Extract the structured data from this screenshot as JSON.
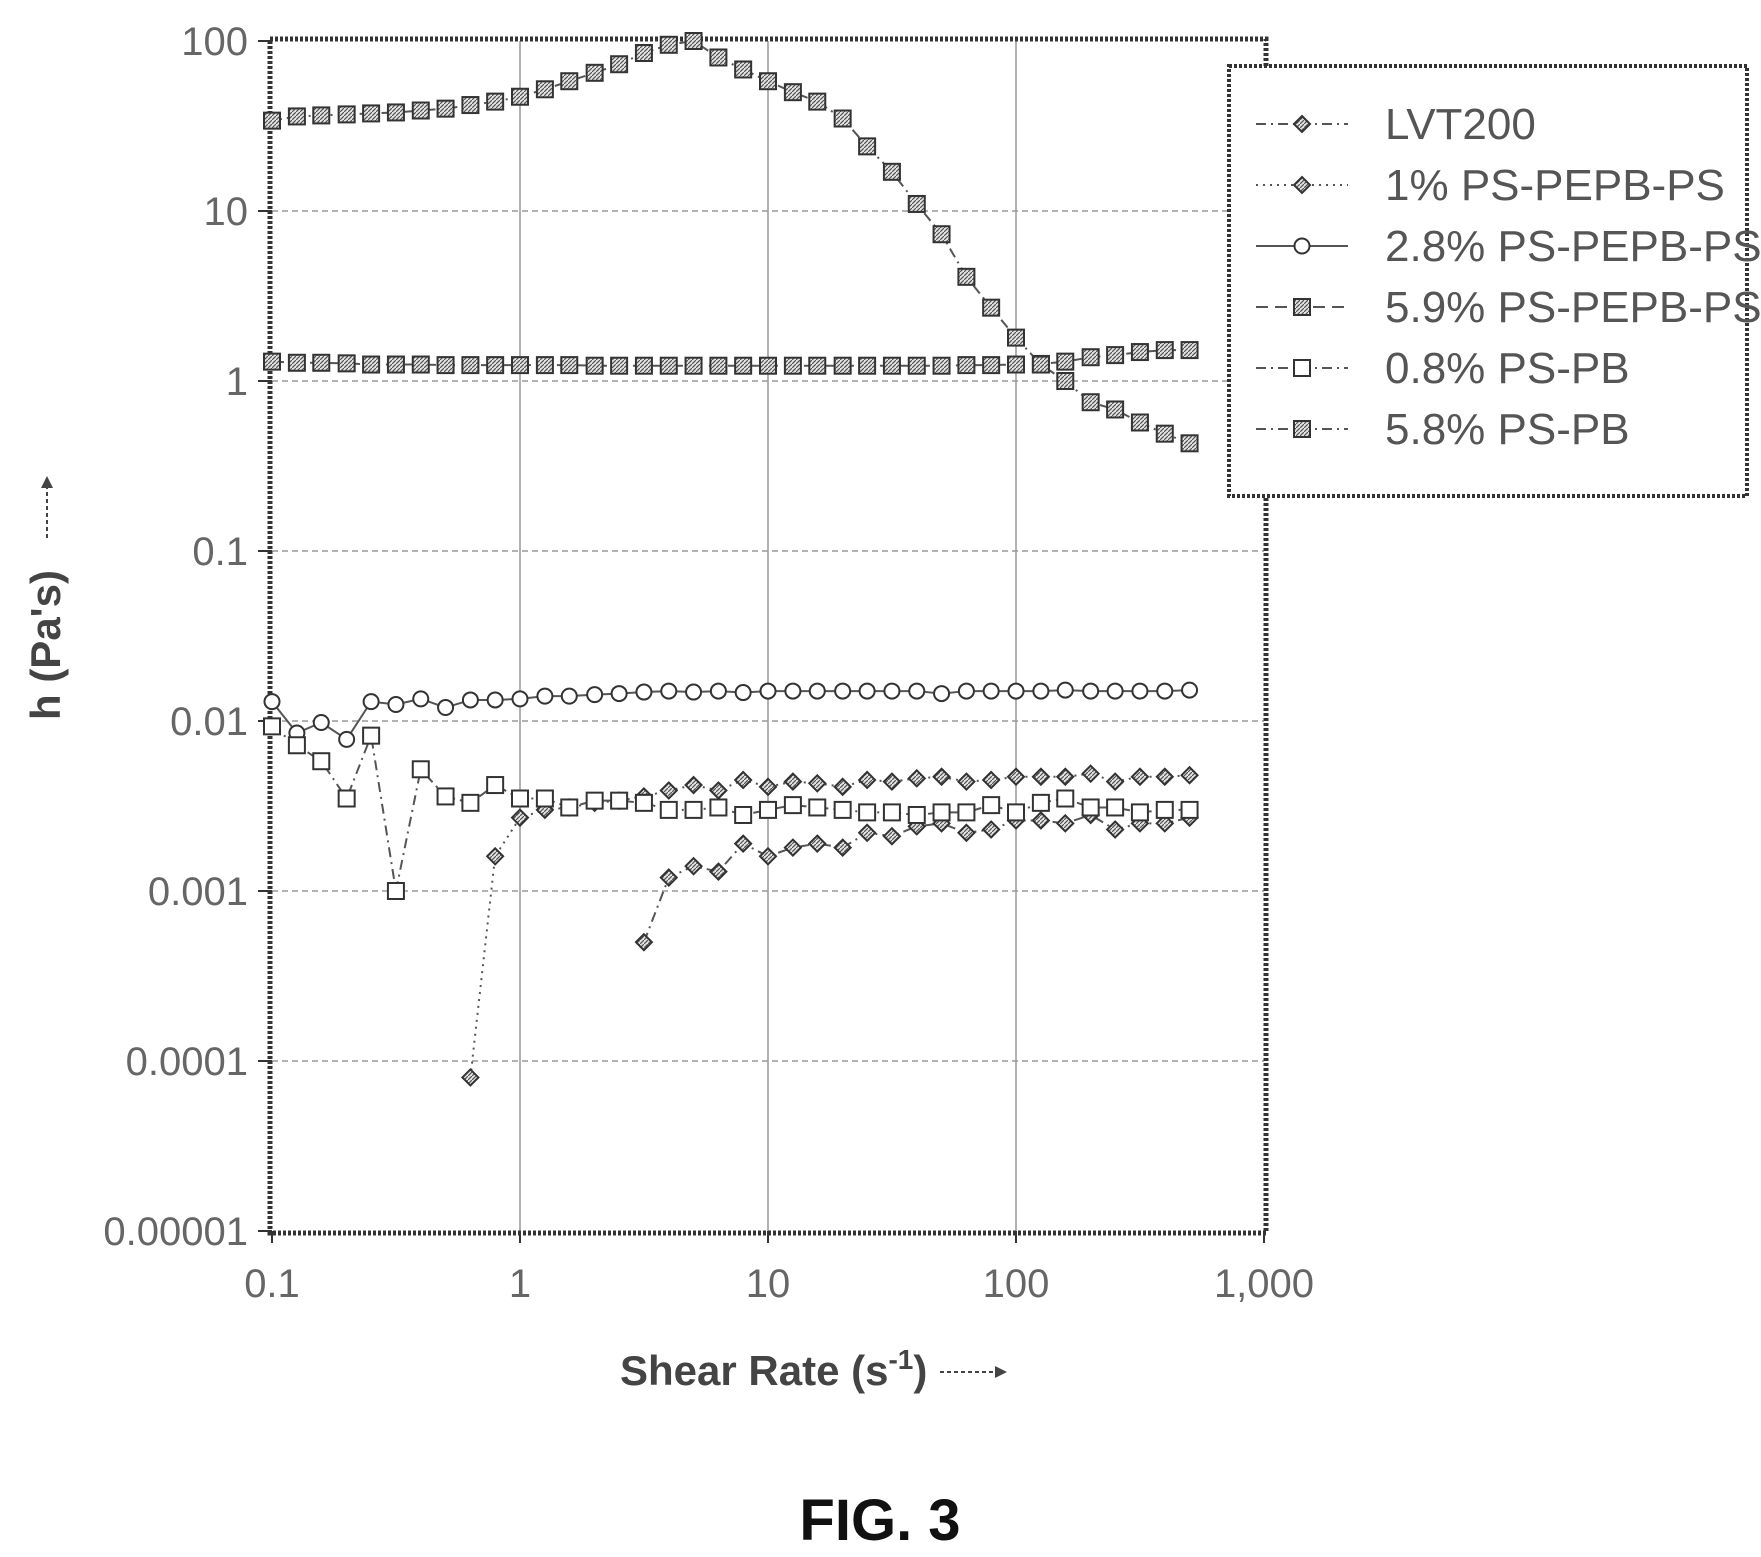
{
  "figure": {
    "caption": "FIG. 3"
  },
  "chart_data": {
    "type": "scatter",
    "title": "",
    "xlabel_main": "Shear Rate (s",
    "xlabel_sup": "-1",
    "xlabel_close": ")",
    "ylabel": "h (Pa's)",
    "x_scale": "log",
    "y_scale": "log",
    "xlim": [
      0.1,
      1000
    ],
    "ylim": [
      1e-05,
      100
    ],
    "x_ticks": [
      {
        "value": 0.1,
        "label": "0.1"
      },
      {
        "value": 1,
        "label": "1"
      },
      {
        "value": 10,
        "label": "10"
      },
      {
        "value": 100,
        "label": "100"
      },
      {
        "value": 1000,
        "label": "1,000"
      }
    ],
    "y_ticks": [
      {
        "value": 100,
        "label": "100"
      },
      {
        "value": 10,
        "label": "10"
      },
      {
        "value": 1,
        "label": "1"
      },
      {
        "value": 0.1,
        "label": "0.1"
      },
      {
        "value": 0.01,
        "label": "0.01"
      },
      {
        "value": 0.001,
        "label": "0.001"
      },
      {
        "value": 0.0001,
        "label": "0.0001"
      },
      {
        "value": 1e-05,
        "label": "0.00001"
      }
    ],
    "grid": true,
    "legend_position": "top-right",
    "series": [
      {
        "name": "LVT200",
        "marker": "diamond-hatched",
        "line": "dash-dot",
        "x": [
          3.16,
          3.98,
          5.01,
          6.31,
          7.94,
          10,
          12.6,
          15.8,
          20,
          25.1,
          31.6,
          39.8,
          50.1,
          63.1,
          79.4,
          100,
          126,
          158,
          200,
          251,
          316,
          398,
          501
        ],
        "y": [
          0.0005,
          0.0012,
          0.0014,
          0.0013,
          0.0019,
          0.0016,
          0.0018,
          0.0019,
          0.0018,
          0.0022,
          0.0021,
          0.0024,
          0.0025,
          0.0022,
          0.0023,
          0.0026,
          0.0026,
          0.0025,
          0.0028,
          0.0023,
          0.0025,
          0.0025,
          0.0027
        ]
      },
      {
        "name": "1% PS-PEPB-PS",
        "marker": "diamond-hatched",
        "line": "dotted",
        "x": [
          0.631,
          0.794,
          1,
          1.26,
          1.58,
          2,
          2.51,
          3.16,
          3.98,
          5.01,
          6.31,
          7.94,
          10,
          12.6,
          15.8,
          20,
          25.1,
          31.6,
          39.8,
          50.1,
          63.1,
          79.4,
          100,
          126,
          158,
          200,
          251,
          316,
          398,
          501
        ],
        "y": [
          8e-05,
          0.0016,
          0.0027,
          0.003,
          0.0031,
          0.0033,
          0.0034,
          0.0036,
          0.0039,
          0.0042,
          0.0039,
          0.0045,
          0.0041,
          0.0044,
          0.0043,
          0.0041,
          0.0045,
          0.0044,
          0.0046,
          0.0047,
          0.0044,
          0.0045,
          0.0047,
          0.0047,
          0.0047,
          0.0049,
          0.0044,
          0.0047,
          0.0047,
          0.0048
        ]
      },
      {
        "name": "2.8% PS-PEPB-PS",
        "marker": "circle-open",
        "line": "solid",
        "x": [
          0.1,
          0.126,
          0.158,
          0.2,
          0.251,
          0.316,
          0.398,
          0.501,
          0.631,
          0.794,
          1,
          1.26,
          1.58,
          2,
          2.51,
          3.16,
          3.98,
          5.01,
          6.31,
          7.94,
          10,
          12.6,
          15.8,
          20,
          25.1,
          31.6,
          39.8,
          50.1,
          63.1,
          79.4,
          100,
          126,
          158,
          200,
          251,
          316,
          398,
          501
        ],
        "y": [
          0.013,
          0.0085,
          0.0098,
          0.0078,
          0.013,
          0.0125,
          0.0135,
          0.012,
          0.0133,
          0.0133,
          0.0135,
          0.014,
          0.014,
          0.0143,
          0.0145,
          0.0148,
          0.015,
          0.0148,
          0.015,
          0.0147,
          0.015,
          0.015,
          0.015,
          0.015,
          0.015,
          0.015,
          0.015,
          0.0145,
          0.015,
          0.015,
          0.015,
          0.015,
          0.0152,
          0.015,
          0.015,
          0.015,
          0.015,
          0.0152
        ]
      },
      {
        "name": "5.9% PS-PEPB-PS",
        "marker": "square-hatched",
        "line": "dashed",
        "x": [
          0.1,
          0.126,
          0.158,
          0.2,
          0.251,
          0.316,
          0.398,
          0.501,
          0.631,
          0.794,
          1,
          1.26,
          1.58,
          2,
          2.51,
          3.16,
          3.98,
          5.01,
          6.31,
          7.94,
          10,
          12.6,
          15.8,
          20,
          25.1,
          31.6,
          39.8,
          50.1,
          63.1,
          79.4,
          100,
          126,
          158,
          200,
          251,
          316,
          398,
          501
        ],
        "y": [
          1.3,
          1.28,
          1.28,
          1.27,
          1.25,
          1.25,
          1.25,
          1.24,
          1.24,
          1.24,
          1.24,
          1.24,
          1.24,
          1.23,
          1.23,
          1.23,
          1.23,
          1.23,
          1.23,
          1.23,
          1.23,
          1.23,
          1.23,
          1.23,
          1.23,
          1.23,
          1.23,
          1.23,
          1.24,
          1.24,
          1.25,
          1.26,
          1.3,
          1.38,
          1.42,
          1.48,
          1.52,
          1.52
        ]
      },
      {
        "name": "0.8% PS-PB",
        "marker": "square-open",
        "line": "dash-dot",
        "x": [
          0.1,
          0.126,
          0.158,
          0.2,
          0.251,
          0.316,
          0.398,
          0.501,
          0.631,
          0.794,
          1,
          1.26,
          1.58,
          2,
          2.51,
          3.16,
          3.98,
          5.01,
          6.31,
          7.94,
          10,
          12.6,
          15.8,
          20,
          25.1,
          31.6,
          39.8,
          50.1,
          63.1,
          79.4,
          100,
          126,
          158,
          200,
          251,
          316,
          398,
          501
        ],
        "y": [
          0.0093,
          0.0072,
          0.0058,
          0.0035,
          0.0082,
          0.001,
          0.0052,
          0.0036,
          0.0033,
          0.0042,
          0.0035,
          0.0035,
          0.0031,
          0.0034,
          0.0034,
          0.0033,
          0.003,
          0.003,
          0.0031,
          0.0028,
          0.003,
          0.0032,
          0.0031,
          0.003,
          0.0029,
          0.0029,
          0.0028,
          0.0029,
          0.0029,
          0.0032,
          0.0029,
          0.0033,
          0.0035,
          0.0031,
          0.0031,
          0.0029,
          0.003,
          0.003
        ]
      },
      {
        "name": "5.8% PS-PB",
        "marker": "square-hatched",
        "line": "dash-dot",
        "x": [
          0.1,
          0.126,
          0.158,
          0.2,
          0.251,
          0.316,
          0.398,
          0.501,
          0.631,
          0.794,
          1,
          1.26,
          1.58,
          2,
          2.51,
          3.16,
          3.98,
          5.01,
          6.31,
          7.94,
          10,
          12.6,
          15.8,
          20,
          25.1,
          31.6,
          39.8,
          50.1,
          63.1,
          79.4,
          100,
          126,
          158,
          200,
          251,
          316,
          398,
          501
        ],
        "y": [
          34,
          36,
          36.5,
          37,
          37.5,
          38,
          39,
          40,
          42,
          44,
          47,
          52,
          58,
          65,
          73,
          85,
          95,
          100,
          80,
          68,
          58,
          50,
          44,
          35,
          24,
          17,
          11,
          7.3,
          4.1,
          2.7,
          1.8,
          1.25,
          1.0,
          0.75,
          0.68,
          0.57,
          0.49,
          0.43
        ]
      }
    ]
  }
}
